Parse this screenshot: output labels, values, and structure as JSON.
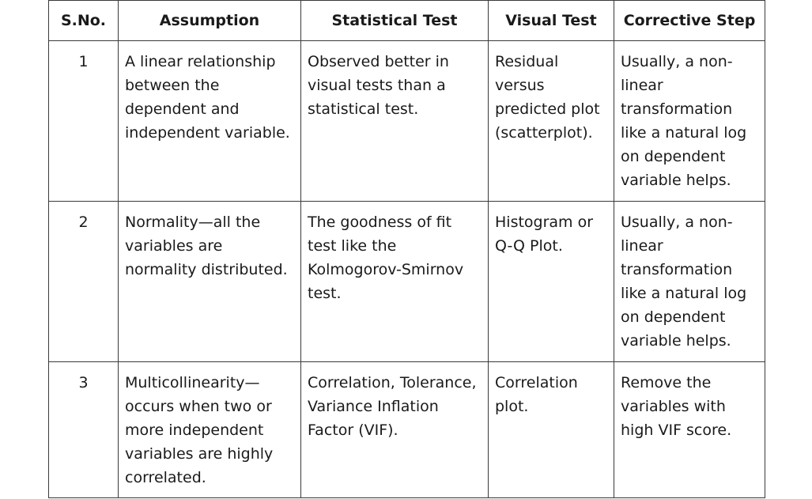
{
  "table": {
    "headers": [
      "S.No.",
      "Assumption",
      "Statistical Test",
      "Visual Test",
      "Corrective Step"
    ],
    "rows": [
      {
        "sno": "1",
        "assumption": "A linear relationship between the dependent and independent variable.",
        "statistical_test": "Observed better in visual tests than a statistical test.",
        "visual_test": "Residual versus predicted plot (scatterplot).",
        "corrective_step": "Usually, a non-linear transformation like a natural log on dependent variable helps."
      },
      {
        "sno": "2",
        "assumption": "Normality—all the variables are normality distributed.",
        "statistical_test": "The goodness of fit test like the Kolmogorov-Smirnov test.",
        "visual_test": "Histogram or Q-Q Plot.",
        "corrective_step": "Usually, a non-linear transformation like a natural log on dependent variable helps."
      },
      {
        "sno": "3",
        "assumption": "Multicollinearity—occurs when two or more independent variables are highly correlated.",
        "statistical_test": "Correlation, Tolerance, Variance Inflation Factor (VIF).",
        "visual_test": "Correlation plot.",
        "corrective_step": "Remove the variables with high VIF score."
      }
    ]
  }
}
